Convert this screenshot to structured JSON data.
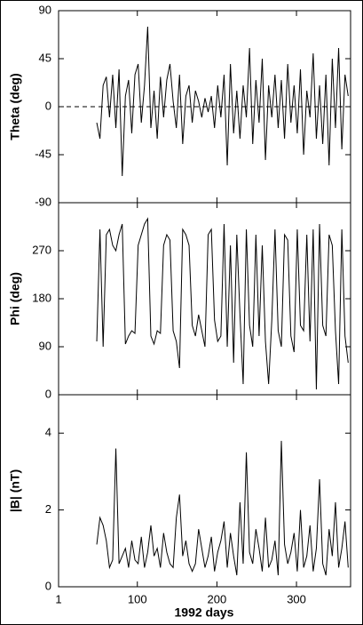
{
  "chart_data": {
    "type": "line",
    "xlabel": "1992 days",
    "x": [
      49,
      53,
      57,
      61,
      65,
      69,
      73,
      77,
      81,
      85,
      89,
      93,
      97,
      101,
      105,
      109,
      113,
      117,
      121,
      125,
      129,
      133,
      137,
      141,
      145,
      149,
      153,
      157,
      161,
      165,
      169,
      173,
      177,
      181,
      185,
      189,
      193,
      197,
      201,
      205,
      209,
      213,
      217,
      221,
      225,
      229,
      233,
      237,
      241,
      245,
      249,
      253,
      257,
      261,
      265,
      269,
      273,
      277,
      281,
      285,
      289,
      293,
      297,
      301,
      305,
      309,
      313,
      317,
      321,
      325,
      329,
      333,
      337,
      341,
      345,
      349,
      353,
      357,
      361,
      365
    ],
    "xlim": [
      1,
      368
    ],
    "xticks": [
      1,
      100,
      200,
      300
    ],
    "panels": [
      {
        "ylabel": "Theta (deg)",
        "ylim": [
          -90,
          90
        ],
        "yticks": [
          -90,
          -45,
          0,
          45,
          90
        ],
        "color": "#000000",
        "reference_line": {
          "value": 0,
          "style": "dashed"
        },
        "values": [
          -15,
          -30,
          20,
          28,
          -10,
          30,
          -20,
          35,
          -65,
          10,
          25,
          -25,
          30,
          40,
          -15,
          20,
          75,
          -20,
          15,
          -30,
          28,
          -10,
          25,
          40,
          5,
          -20,
          30,
          -35,
          10,
          20,
          -15,
          15,
          5,
          -10,
          8,
          -5,
          10,
          -20,
          20,
          -10,
          30,
          -55,
          40,
          -25,
          15,
          -30,
          20,
          -10,
          55,
          -35,
          25,
          -15,
          45,
          -50,
          20,
          -10,
          30,
          -20,
          25,
          -30,
          40,
          -15,
          20,
          -25,
          35,
          -45,
          15,
          -10,
          50,
          -30,
          20,
          -35,
          30,
          -55,
          45,
          -20,
          55,
          -40,
          30,
          10
        ]
      },
      {
        "ylabel": "Phi (deg)",
        "ylim": [
          0,
          360
        ],
        "yticks": [
          0,
          90,
          180,
          270
        ],
        "color": "#000000",
        "values": [
          100,
          310,
          90,
          300,
          310,
          280,
          270,
          300,
          320,
          95,
          110,
          120,
          115,
          280,
          300,
          320,
          330,
          110,
          95,
          120,
          115,
          280,
          300,
          290,
          120,
          100,
          50,
          310,
          300,
          280,
          130,
          110,
          150,
          120,
          90,
          300,
          310,
          140,
          100,
          110,
          320,
          90,
          280,
          60,
          300,
          150,
          20,
          310,
          130,
          90,
          300,
          110,
          280,
          100,
          20,
          140,
          310,
          120,
          90,
          300,
          290,
          110,
          80,
          310,
          130,
          120,
          300,
          100,
          310,
          10,
          320,
          130,
          110,
          300,
          280,
          120,
          20,
          310,
          110,
          60
        ]
      },
      {
        "ylabel": "|B| (nT)",
        "ylim": [
          0,
          5
        ],
        "yticks": [
          0,
          2,
          4
        ],
        "color": "#000000",
        "values": [
          1.1,
          1.8,
          1.6,
          1.2,
          0.5,
          0.7,
          3.6,
          0.6,
          0.8,
          1.0,
          0.5,
          1.2,
          0.7,
          0.6,
          1.3,
          0.5,
          0.9,
          1.6,
          0.8,
          1.0,
          0.5,
          1.4,
          0.9,
          0.6,
          0.5,
          1.8,
          2.4,
          0.8,
          1.2,
          0.6,
          0.4,
          0.6,
          1.5,
          1.0,
          0.5,
          0.8,
          1.3,
          0.4,
          0.9,
          1.2,
          1.7,
          0.5,
          1.4,
          0.8,
          0.3,
          2.2,
          0.6,
          3.5,
          0.9,
          0.6,
          1.5,
          1.0,
          0.4,
          1.8,
          0.5,
          0.7,
          1.2,
          0.3,
          3.8,
          1.1,
          0.6,
          0.9,
          1.4,
          0.4,
          2.0,
          0.5,
          0.8,
          1.6,
          0.4,
          1.0,
          2.8,
          0.6,
          0.3,
          1.5,
          0.8,
          2.2,
          0.5,
          1.0,
          1.7,
          0.5
        ]
      }
    ]
  }
}
